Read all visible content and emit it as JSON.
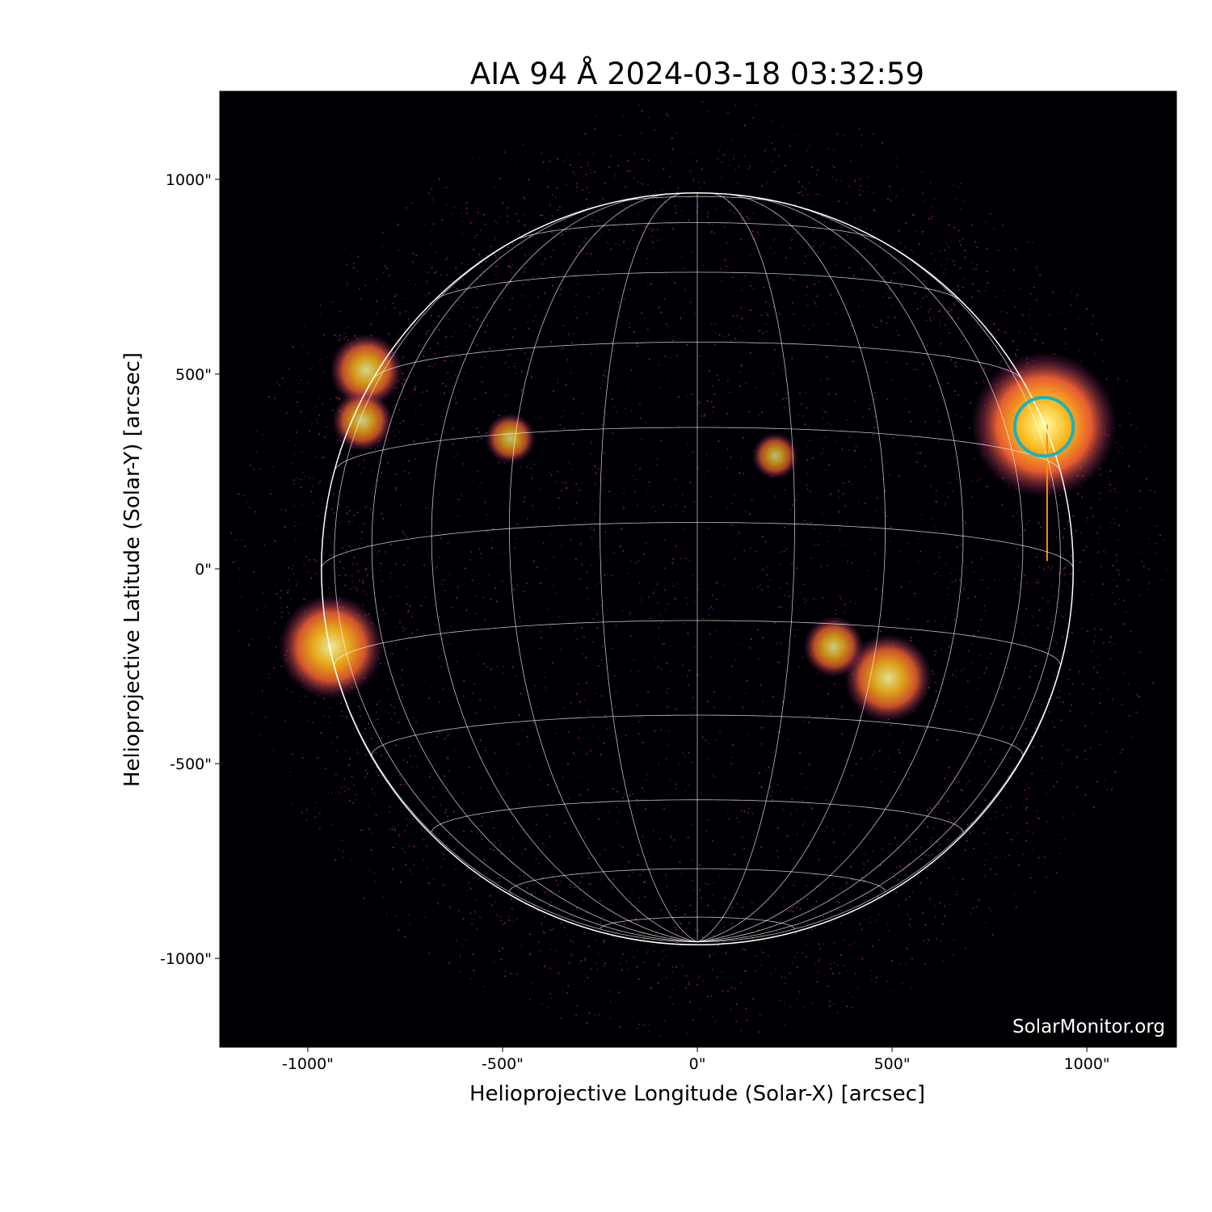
{
  "chart_data": {
    "type": "image",
    "title": "AIA 94 Å 2024-03-18 03:32:59",
    "xlabel": "Helioprojective Longitude (Solar-X) [arcsec]",
    "ylabel": "Helioprojective Latitude (Solar-Y) [arcsec]",
    "xlim": [
      -1226,
      1230
    ],
    "ylim": [
      -1228,
      1226
    ],
    "xticks": [
      -1000,
      -500,
      0,
      500,
      1000
    ],
    "yticks": [
      -1000,
      -500,
      0,
      500,
      1000
    ],
    "xtick_labels": [
      "-1000\"",
      "-500\"",
      "0\"",
      "500\"",
      "1000\""
    ],
    "ytick_labels": [
      "-1000\"",
      "-500\"",
      "0\"",
      "500\"",
      "1000\""
    ],
    "colormap": "inferno",
    "solar_radius_arcsec": 965,
    "grid": {
      "spacing_deg": 15,
      "color": "#ffffff"
    },
    "highlight_circle": {
      "x": 890,
      "y": 365,
      "radius_arcsec": 75,
      "color": "#17b3c0"
    },
    "bright_regions": [
      {
        "x": 890,
        "y": 370,
        "intensity": 1.0
      },
      {
        "x": -940,
        "y": -200,
        "intensity": 0.8
      },
      {
        "x": 490,
        "y": -280,
        "intensity": 0.7
      },
      {
        "x": -850,
        "y": 510,
        "intensity": 0.6
      },
      {
        "x": -860,
        "y": 380,
        "intensity": 0.5
      },
      {
        "x": 350,
        "y": -200,
        "intensity": 0.5
      },
      {
        "x": 200,
        "y": 290,
        "intensity": 0.35
      },
      {
        "x": -480,
        "y": 335,
        "intensity": 0.4
      }
    ],
    "watermark": "SolarMonitor.org"
  }
}
